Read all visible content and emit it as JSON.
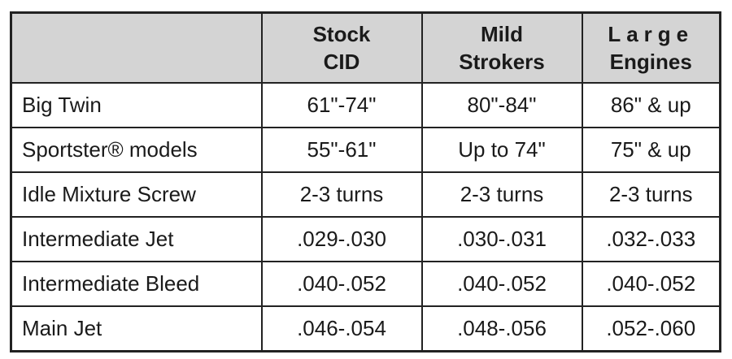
{
  "table": {
    "header": [
      [
        "Stock",
        "CID"
      ],
      [
        "Mild",
        "Strokers"
      ],
      [
        "Large",
        "Engines"
      ]
    ],
    "rows": [
      [
        "Big Twin",
        "61\"-74\"",
        "80\"-84\"",
        "86\" & up"
      ],
      [
        "Sportster® models",
        "55\"-61\"",
        "Up to 74\"",
        "75\" & up"
      ],
      [
        "Idle Mixture Screw",
        "2-3 turns",
        "2-3 turns",
        "2-3 turns"
      ],
      [
        "Intermediate Jet",
        ".029-.030",
        ".030-.031",
        ".032-.033"
      ],
      [
        "Intermediate Bleed",
        ".040-.052",
        ".040-.052",
        ".040-.052"
      ],
      [
        "Main Jet",
        ".046-.054",
        ".048-.056",
        ".052-.060"
      ]
    ]
  }
}
